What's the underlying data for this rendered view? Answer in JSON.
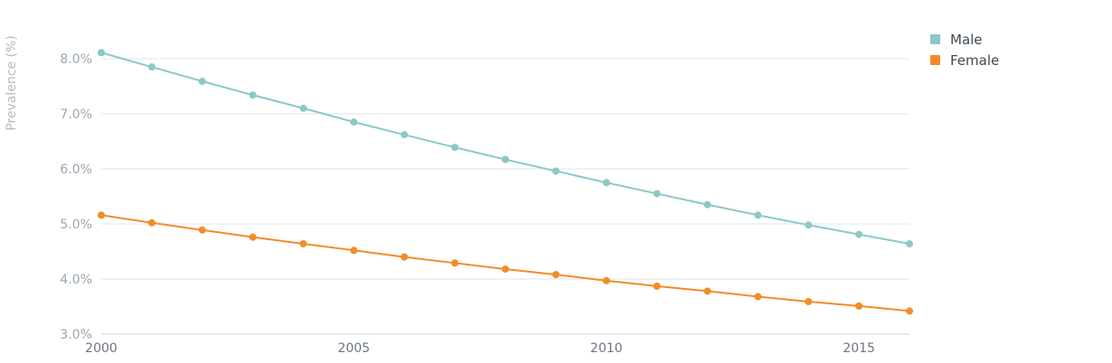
{
  "chart_data": {
    "type": "line",
    "ylabel": "Prevalence (%)",
    "xlabel": "",
    "x": [
      2000,
      2001,
      2002,
      2003,
      2004,
      2005,
      2006,
      2007,
      2008,
      2009,
      2010,
      2011,
      2012,
      2013,
      2014,
      2015,
      2016
    ],
    "xlim": [
      2000,
      2016
    ],
    "ylim": [
      3.0,
      8.7
    ],
    "x_ticks": [
      2000,
      2005,
      2010,
      2015
    ],
    "x_tick_labels": [
      "2000",
      "2005",
      "2010",
      "2015"
    ],
    "y_ticks": [
      3.0,
      4.0,
      5.0,
      6.0,
      7.0,
      8.0
    ],
    "y_tick_labels": [
      "3.0%",
      "4.0%",
      "5.0%",
      "6.0%",
      "7.0%",
      "8.0%"
    ],
    "grid": true,
    "legend_position": "top-right",
    "series": [
      {
        "name": "Male",
        "color": "#8cc8c8",
        "values": [
          8.11,
          7.85,
          7.59,
          7.34,
          7.1,
          6.85,
          6.62,
          6.39,
          6.17,
          5.96,
          5.75,
          5.55,
          5.35,
          5.16,
          4.98,
          4.81,
          4.64
        ]
      },
      {
        "name": "Female",
        "color": "#f28c28",
        "values": [
          5.16,
          5.02,
          4.89,
          4.76,
          4.64,
          4.52,
          4.4,
          4.29,
          4.18,
          4.08,
          3.97,
          3.87,
          3.78,
          3.68,
          3.59,
          3.51,
          3.42
        ]
      }
    ]
  }
}
